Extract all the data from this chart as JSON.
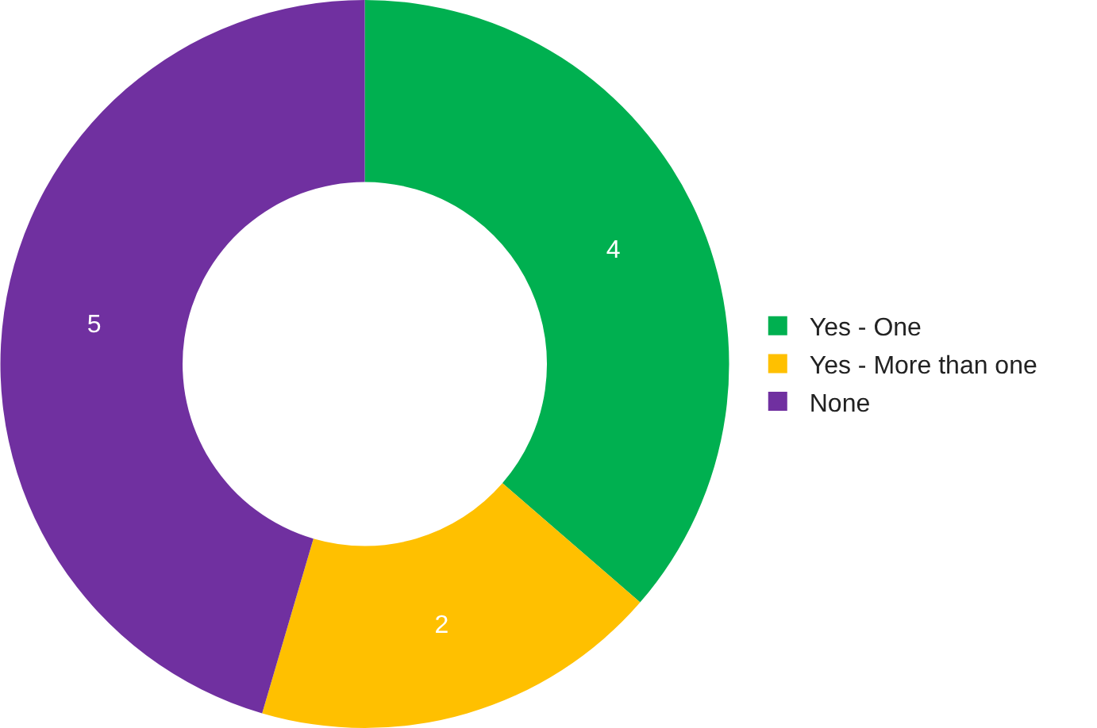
{
  "chart_data": {
    "type": "donut",
    "categories": [
      "Yes - One",
      "Yes - More than one",
      "None"
    ],
    "values": [
      4,
      2,
      5
    ],
    "colors": [
      "#00b050",
      "#ffc000",
      "#7030a0"
    ],
    "data_labels": true,
    "legend": "right"
  }
}
